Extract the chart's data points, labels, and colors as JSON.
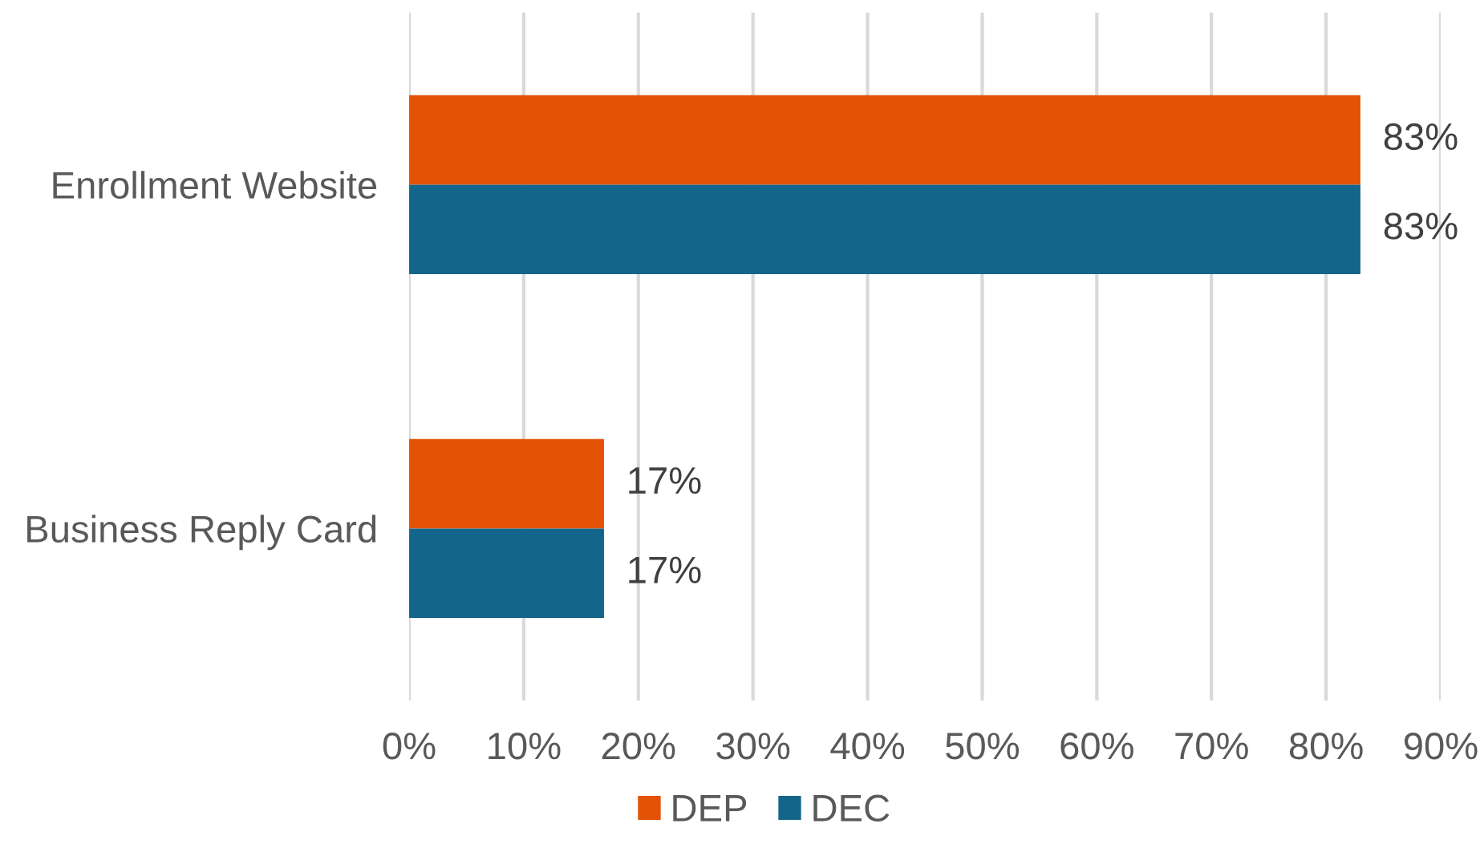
{
  "chart_data": {
    "type": "bar",
    "orientation": "horizontal",
    "categories": [
      "Enrollment Website",
      "Business Reply Card"
    ],
    "series": [
      {
        "name": "DEP",
        "color": "#e35205",
        "values": [
          83,
          17
        ],
        "value_labels": [
          "83%",
          "17%"
        ]
      },
      {
        "name": "DEC",
        "color": "#136689",
        "values": [
          83,
          17
        ],
        "value_labels": [
          "83%",
          "17%"
        ]
      }
    ],
    "xlim": [
      0,
      90
    ],
    "xticks": [
      {
        "value": 0,
        "label": "0%"
      },
      {
        "value": 10,
        "label": "10%"
      },
      {
        "value": 20,
        "label": "20%"
      },
      {
        "value": 30,
        "label": "30%"
      },
      {
        "value": 40,
        "label": "40%"
      },
      {
        "value": 50,
        "label": "50%"
      },
      {
        "value": 60,
        "label": "60%"
      },
      {
        "value": 70,
        "label": "70%"
      },
      {
        "value": 80,
        "label": "80%"
      },
      {
        "value": 90,
        "label": "90%"
      }
    ],
    "grid": "x",
    "legend": "bottom"
  }
}
